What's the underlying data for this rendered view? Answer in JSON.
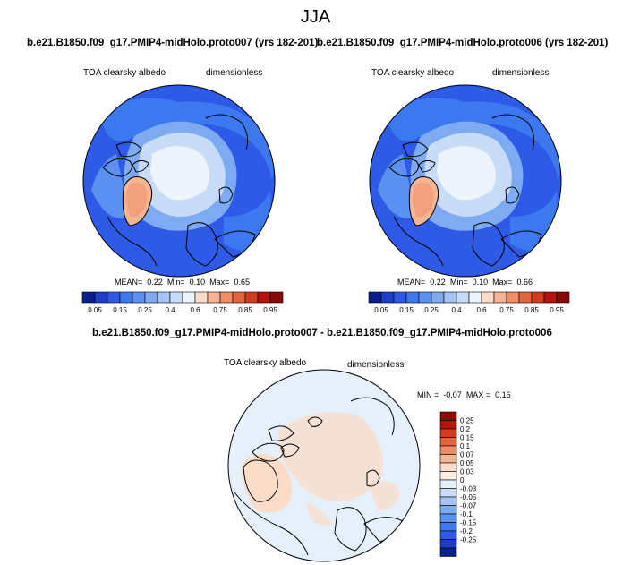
{
  "page": {
    "season": "JJA",
    "panel_left_title": "b.e21.B1850.f09_g17.PMIP4-midHolo.proto007 (yrs 182-201)",
    "panel_right_title": "b.e21.B1850.f09_g17.PMIP4-midHolo.proto006 (yrs 182-201)",
    "diff_title": "b.e21.B1850.f09_g17.PMIP4-midHolo.proto007 - b.e21.B1850.f09_g17.PMIP4-midHolo.proto006",
    "variable": "TOA clearsky albedo",
    "units": "dimensionless"
  },
  "stats": {
    "left": {
      "mean_label": "MEAN=",
      "mean": "0.22",
      "min_label": "Min=",
      "min": "0.10",
      "max_label": "Max=",
      "max": "0.65"
    },
    "right": {
      "mean_label": "MEAN=",
      "mean": "0.22",
      "min_label": "Min=",
      "min": "0.10",
      "max_label": "Max=",
      "max": "0.66"
    },
    "diff": {
      "min_label": "MIN =",
      "min": "-0.07",
      "max_label": "MAX =",
      "max": "0.16"
    }
  },
  "chart_data": [
    {
      "type": "heatmap",
      "projection": "north-polar-stereographic",
      "title": "TOA clearsky albedo",
      "subtitle": "b.e21.B1850.f09_g17.PMIP4-midHolo.proto007 (yrs 182-201)",
      "units": "dimensionless",
      "mean": 0.22,
      "min": 0.1,
      "max": 0.65,
      "levels": [
        0.05,
        0.1,
        0.15,
        0.2,
        0.25,
        0.3,
        0.4,
        0.5,
        0.6,
        0.7,
        0.75,
        0.8,
        0.85,
        0.9,
        0.95
      ],
      "colorbar_tick_labels": [
        "0.05",
        "0.15",
        "0.25",
        "0.4",
        "0.6",
        "0.75",
        "0.85",
        "0.95"
      ],
      "colors": [
        "#0a1e8c",
        "#1e3cc8",
        "#2d5ae6",
        "#3c78f0",
        "#5a91f0",
        "#7eaaf2",
        "#a5c3f4",
        "#c8dcf8",
        "#eef4fb",
        "#fadcc8",
        "#f5b494",
        "#ef8c64",
        "#e6643c",
        "#d23c1e",
        "#b4140a",
        "#8c0a05"
      ]
    },
    {
      "type": "heatmap",
      "projection": "north-polar-stereographic",
      "title": "TOA clearsky albedo",
      "subtitle": "b.e21.B1850.f09_g17.PMIP4-midHolo.proto006 (yrs 182-201)",
      "units": "dimensionless",
      "mean": 0.22,
      "min": 0.1,
      "max": 0.66,
      "levels": [
        0.05,
        0.1,
        0.15,
        0.2,
        0.25,
        0.3,
        0.4,
        0.5,
        0.6,
        0.7,
        0.75,
        0.8,
        0.85,
        0.9,
        0.95
      ],
      "colorbar_tick_labels": [
        "0.05",
        "0.15",
        "0.25",
        "0.4",
        "0.6",
        "0.75",
        "0.85",
        "0.95"
      ],
      "colors": [
        "#0a1e8c",
        "#1e3cc8",
        "#2d5ae6",
        "#3c78f0",
        "#5a91f0",
        "#7eaaf2",
        "#a5c3f4",
        "#c8dcf8",
        "#eef4fb",
        "#fadcc8",
        "#f5b494",
        "#ef8c64",
        "#e6643c",
        "#d23c1e",
        "#b4140a",
        "#8c0a05"
      ]
    },
    {
      "type": "heatmap",
      "projection": "north-polar-stereographic",
      "title": "TOA clearsky albedo",
      "subtitle": "b.e21.B1850.f09_g17.PMIP4-midHolo.proto007 - b.e21.B1850.f09_g17.PMIP4-midHolo.proto006",
      "units": "dimensionless",
      "min": -0.07,
      "max": 0.16,
      "colorbar_orientation": "vertical",
      "colorbar_tick_labels": [
        "0.25",
        "0.2",
        "0.15",
        "0.1",
        "0.07",
        "0.05",
        "0.03",
        "0",
        "-0.03",
        "-0.05",
        "-0.07",
        "-0.1",
        "-0.15",
        "-0.2",
        "-0.25"
      ],
      "colors": [
        "#8c0a05",
        "#b4140a",
        "#d23c1e",
        "#e6643c",
        "#ef8c64",
        "#f5b494",
        "#fadcc8",
        "#fdeee4",
        "#e6f0fb",
        "#c8dcf8",
        "#a5c3f4",
        "#7eaaf2",
        "#5a91f0",
        "#3c78f0",
        "#2d5ae6",
        "#1e3cc8",
        "#0a1e8c"
      ]
    }
  ]
}
